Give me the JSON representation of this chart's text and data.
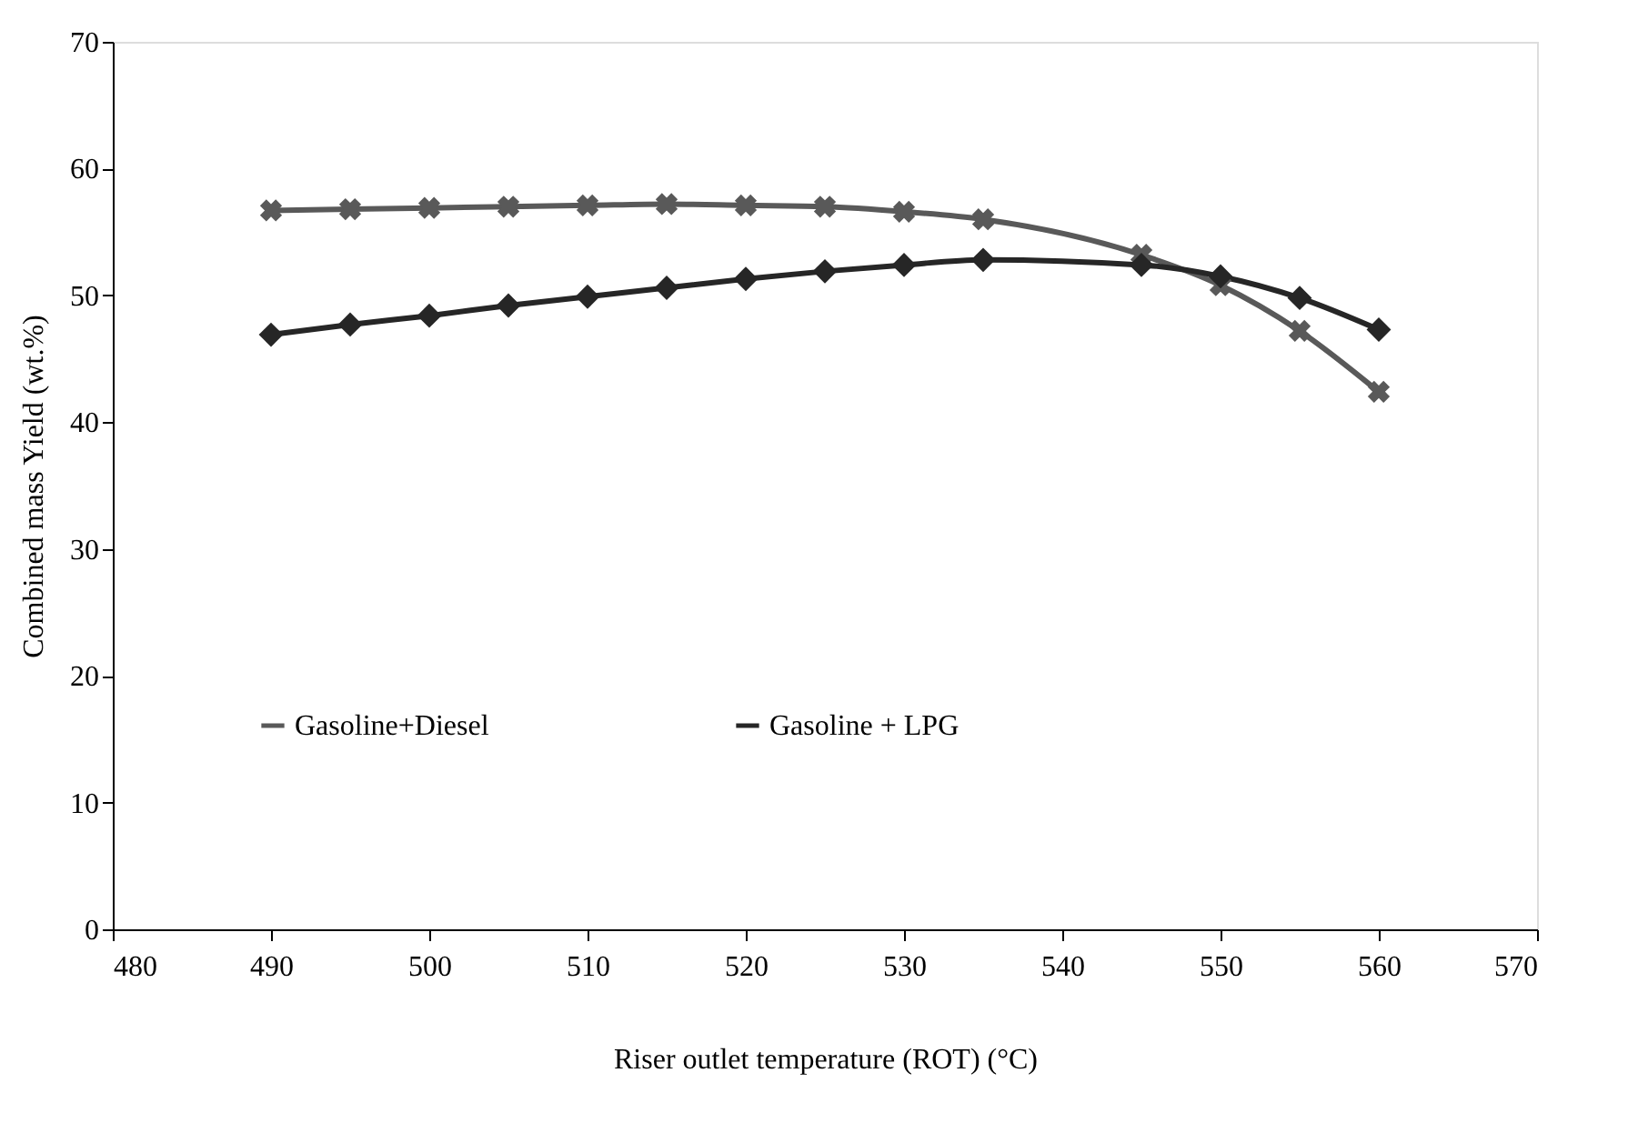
{
  "chart_data": {
    "type": "line",
    "xlabel": "Riser outlet temperature (ROT) (°C)",
    "ylabel": "Combined mass Yield (wt.%)",
    "x": [
      490,
      495,
      500,
      505,
      510,
      515,
      520,
      525,
      530,
      535,
      545,
      550,
      555,
      560
    ],
    "series": [
      {
        "name": "Gasoline+Diesel",
        "color": "#595959",
        "marker": "cross",
        "values": [
          56.7,
          56.8,
          56.9,
          57.0,
          57.1,
          57.2,
          57.1,
          57.0,
          56.6,
          56.0,
          53.2,
          50.8,
          47.2,
          42.4
        ]
      },
      {
        "name": "Gasoline + LPG",
        "color": "#262626",
        "marker": "diamond",
        "values": [
          46.9,
          47.7,
          48.4,
          49.2,
          49.9,
          50.6,
          51.3,
          51.9,
          52.4,
          52.8,
          52.4,
          51.5,
          49.8,
          47.3
        ]
      }
    ],
    "xlim": [
      480,
      570
    ],
    "xticks": [
      480,
      490,
      500,
      510,
      520,
      530,
      540,
      550,
      560,
      570
    ],
    "ylim": [
      0,
      70
    ],
    "yticks": [
      0,
      10,
      20,
      30,
      40,
      50,
      60,
      70
    ],
    "grid": false,
    "legend": "bottom left",
    "line_style": "solid"
  }
}
